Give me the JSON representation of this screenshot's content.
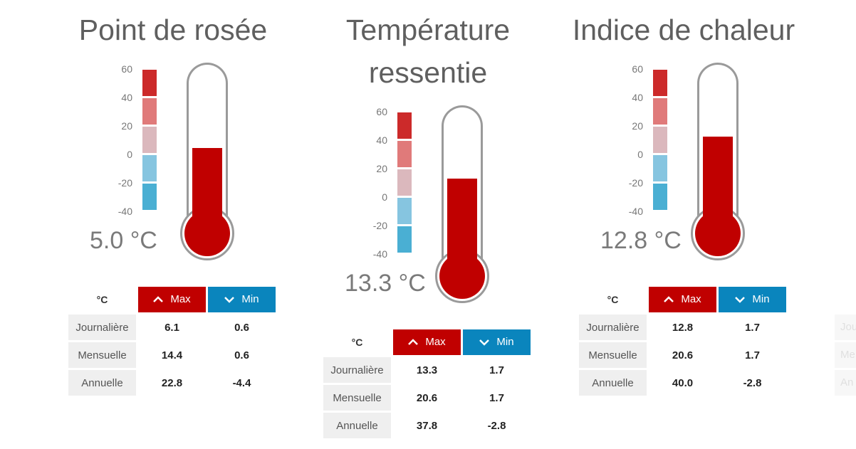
{
  "labels": {
    "unit": "°C",
    "max": "Max",
    "min": "Min",
    "rows": [
      "Journalière",
      "Mensuelle",
      "Annuelle"
    ]
  },
  "scale": [
    "60",
    "40",
    "20",
    "0",
    "-20",
    "-40"
  ],
  "scale_colors": [
    "#cc2a2a",
    "#e07a7a",
    "#dbb8bd",
    "#86c5e0",
    "#4aafd3"
  ],
  "accent_colors": {
    "max": "#c00000",
    "min": "#0a85bd",
    "mercury": "#c00000"
  },
  "gauges": [
    {
      "title_lines": [
        "Point de rosée"
      ],
      "reading": "5.0 °C",
      "level_celsius": 5.0,
      "stats": [
        [
          "6.1",
          "0.6"
        ],
        [
          "14.4",
          "0.6"
        ],
        [
          "22.8",
          "-4.4"
        ]
      ]
    },
    {
      "title_lines": [
        "Température",
        "ressentie"
      ],
      "reading": "13.3 °C",
      "level_celsius": 13.3,
      "stats": [
        [
          "13.3",
          "1.7"
        ],
        [
          "20.6",
          "1.7"
        ],
        [
          "37.8",
          "-2.8"
        ]
      ]
    },
    {
      "title_lines": [
        "Indice de chaleur"
      ],
      "reading": "12.8 °C",
      "level_celsius": 12.8,
      "stats": [
        [
          "12.8",
          "1.7"
        ],
        [
          "20.6",
          "1.7"
        ],
        [
          "40.0",
          "-2.8"
        ]
      ]
    }
  ],
  "partial_panel_rows": [
    "Jou",
    "Me",
    "An"
  ]
}
